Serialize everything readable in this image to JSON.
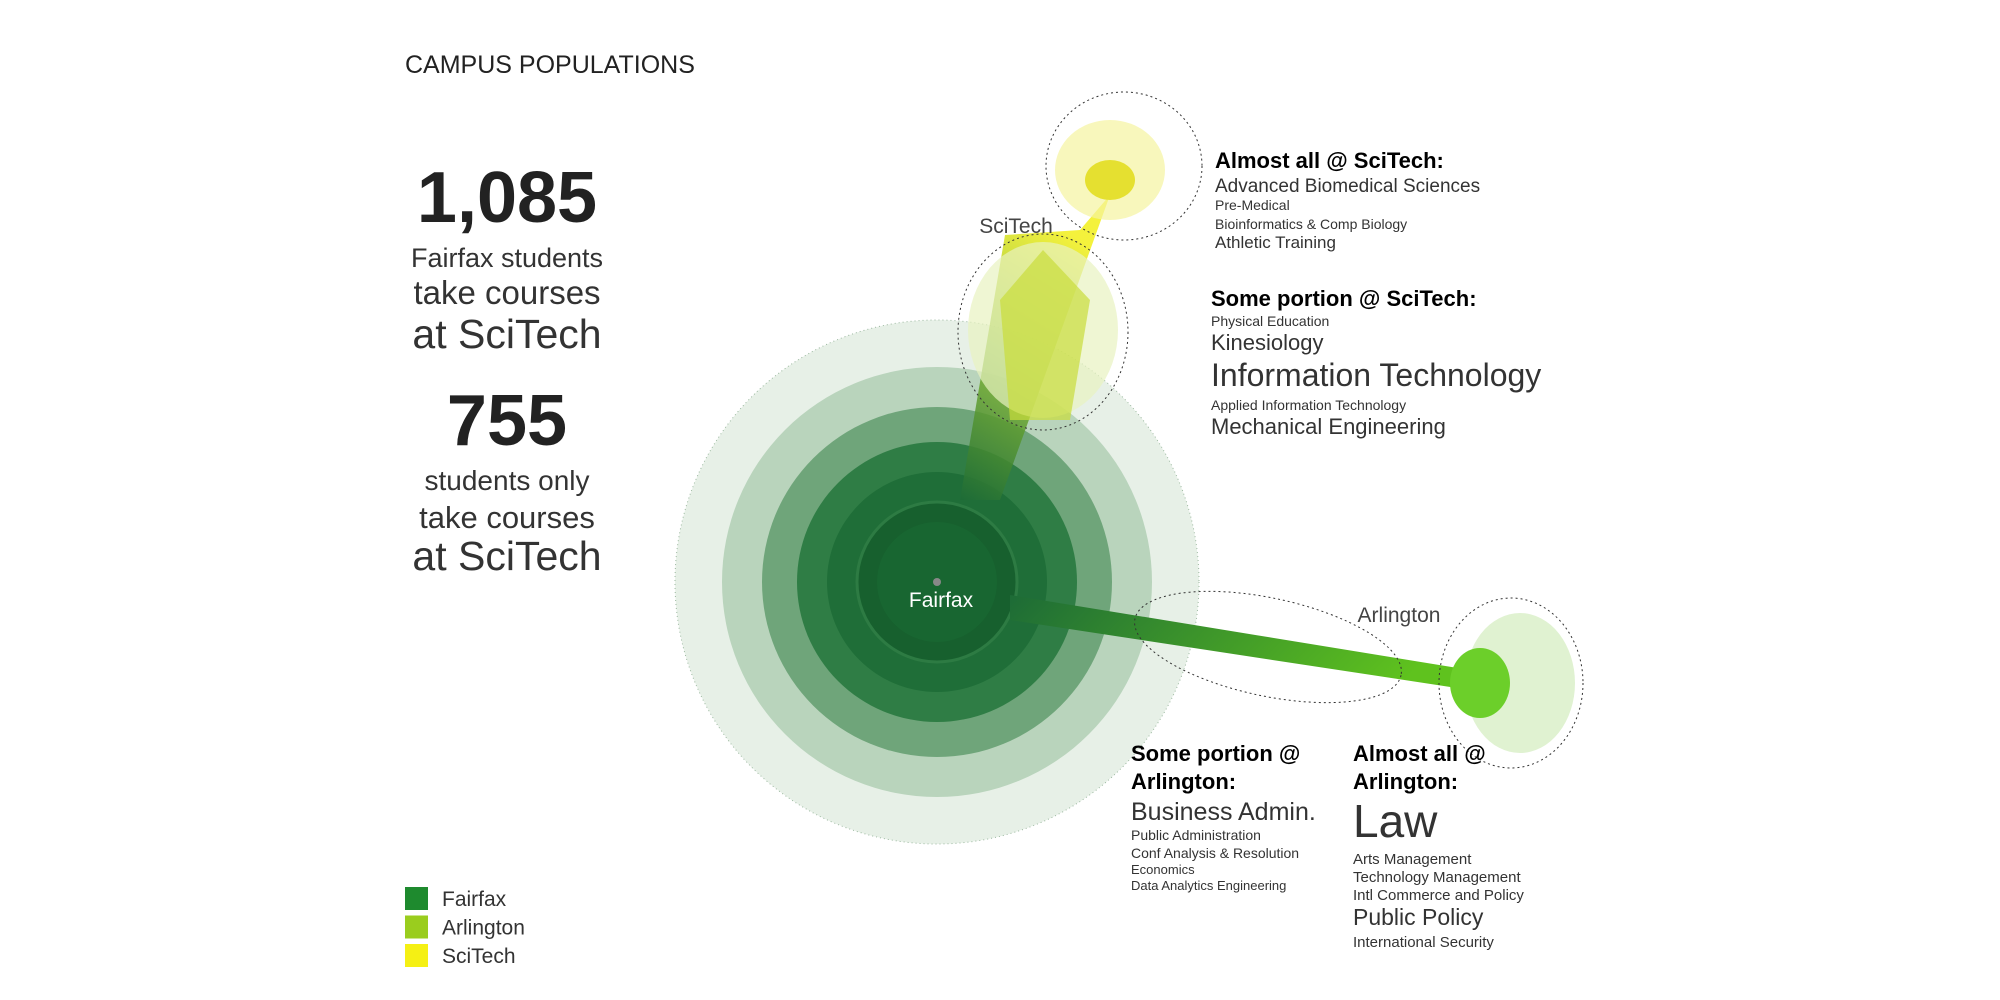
{
  "header": {
    "title": "CAMPUS POPULATIONS"
  },
  "stats": [
    {
      "value": "1,085",
      "lines": [
        "Fairfax students",
        "take courses",
        "at SciTech"
      ]
    },
    {
      "value": "755",
      "lines": [
        "students only",
        "take courses",
        "at SciTech"
      ]
    }
  ],
  "campus_labels": {
    "fairfax": "Fairfax",
    "scitech": "SciTech",
    "arlington": "Arlington"
  },
  "groups": [
    {
      "heading": [
        "Almost all @ SciTech:"
      ],
      "items": [
        "Advanced Biomedical Sciences",
        "Pre-Medical",
        "Bioinformatics & Comp Biology",
        "Athletic Training"
      ]
    },
    {
      "heading": [
        "Some portion @ SciTech:"
      ],
      "items": [
        "Physical Education",
        "Kinesiology",
        "Information Technology",
        "Applied Information Technology",
        "Mechanical Engineering"
      ]
    },
    {
      "heading": [
        "Some portion @",
        "Arlington:"
      ],
      "items": [
        "Business Admin.",
        "Public Administration",
        "Conf Analysis & Resolution",
        "Economics",
        "Data Analytics Engineering"
      ]
    },
    {
      "heading": [
        "Almost all @",
        "Arlington:"
      ],
      "items": [
        "Law",
        "Arts Management",
        "Technology Management",
        "Intl Commerce and Policy",
        "Public Policy",
        "International Security"
      ]
    }
  ],
  "legend": [
    {
      "label": "Fairfax",
      "color": "#1e8a2e"
    },
    {
      "label": "Arlington",
      "color": "#9acd1e"
    },
    {
      "label": "SciTech",
      "color": "#f5f014"
    }
  ]
}
